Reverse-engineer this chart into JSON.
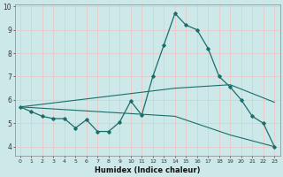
{
  "title": "",
  "xlabel": "Humidex (Indice chaleur)",
  "bg_color": "#cce8e8",
  "grid_color": "#e8c8c8",
  "line_color": "#1a6e6a",
  "xlim": [
    -0.5,
    23.5
  ],
  "ylim": [
    3.6,
    10.1
  ],
  "xticks": [
    0,
    1,
    2,
    3,
    4,
    5,
    6,
    7,
    8,
    9,
    10,
    11,
    12,
    13,
    14,
    15,
    16,
    17,
    18,
    19,
    20,
    21,
    22,
    23
  ],
  "yticks": [
    4,
    5,
    6,
    7,
    8,
    9,
    10
  ],
  "line1_x": [
    0,
    1,
    2,
    3,
    4,
    5,
    6,
    7,
    8,
    9,
    10,
    11,
    12,
    13,
    14,
    15,
    16,
    17,
    18,
    19,
    20,
    21,
    22,
    23
  ],
  "line1_y": [
    5.7,
    5.5,
    5.3,
    5.2,
    5.2,
    4.8,
    5.15,
    4.65,
    4.65,
    5.05,
    5.95,
    5.35,
    7.0,
    8.35,
    9.7,
    9.2,
    9.0,
    8.2,
    7.0,
    6.55,
    6.0,
    5.3,
    5.0,
    4.0
  ],
  "line2_x": [
    0,
    14,
    19,
    23
  ],
  "line2_y": [
    5.7,
    6.5,
    6.65,
    5.9
  ],
  "line3_x": [
    0,
    14,
    19,
    23
  ],
  "line3_y": [
    5.7,
    5.3,
    4.5,
    4.0
  ]
}
